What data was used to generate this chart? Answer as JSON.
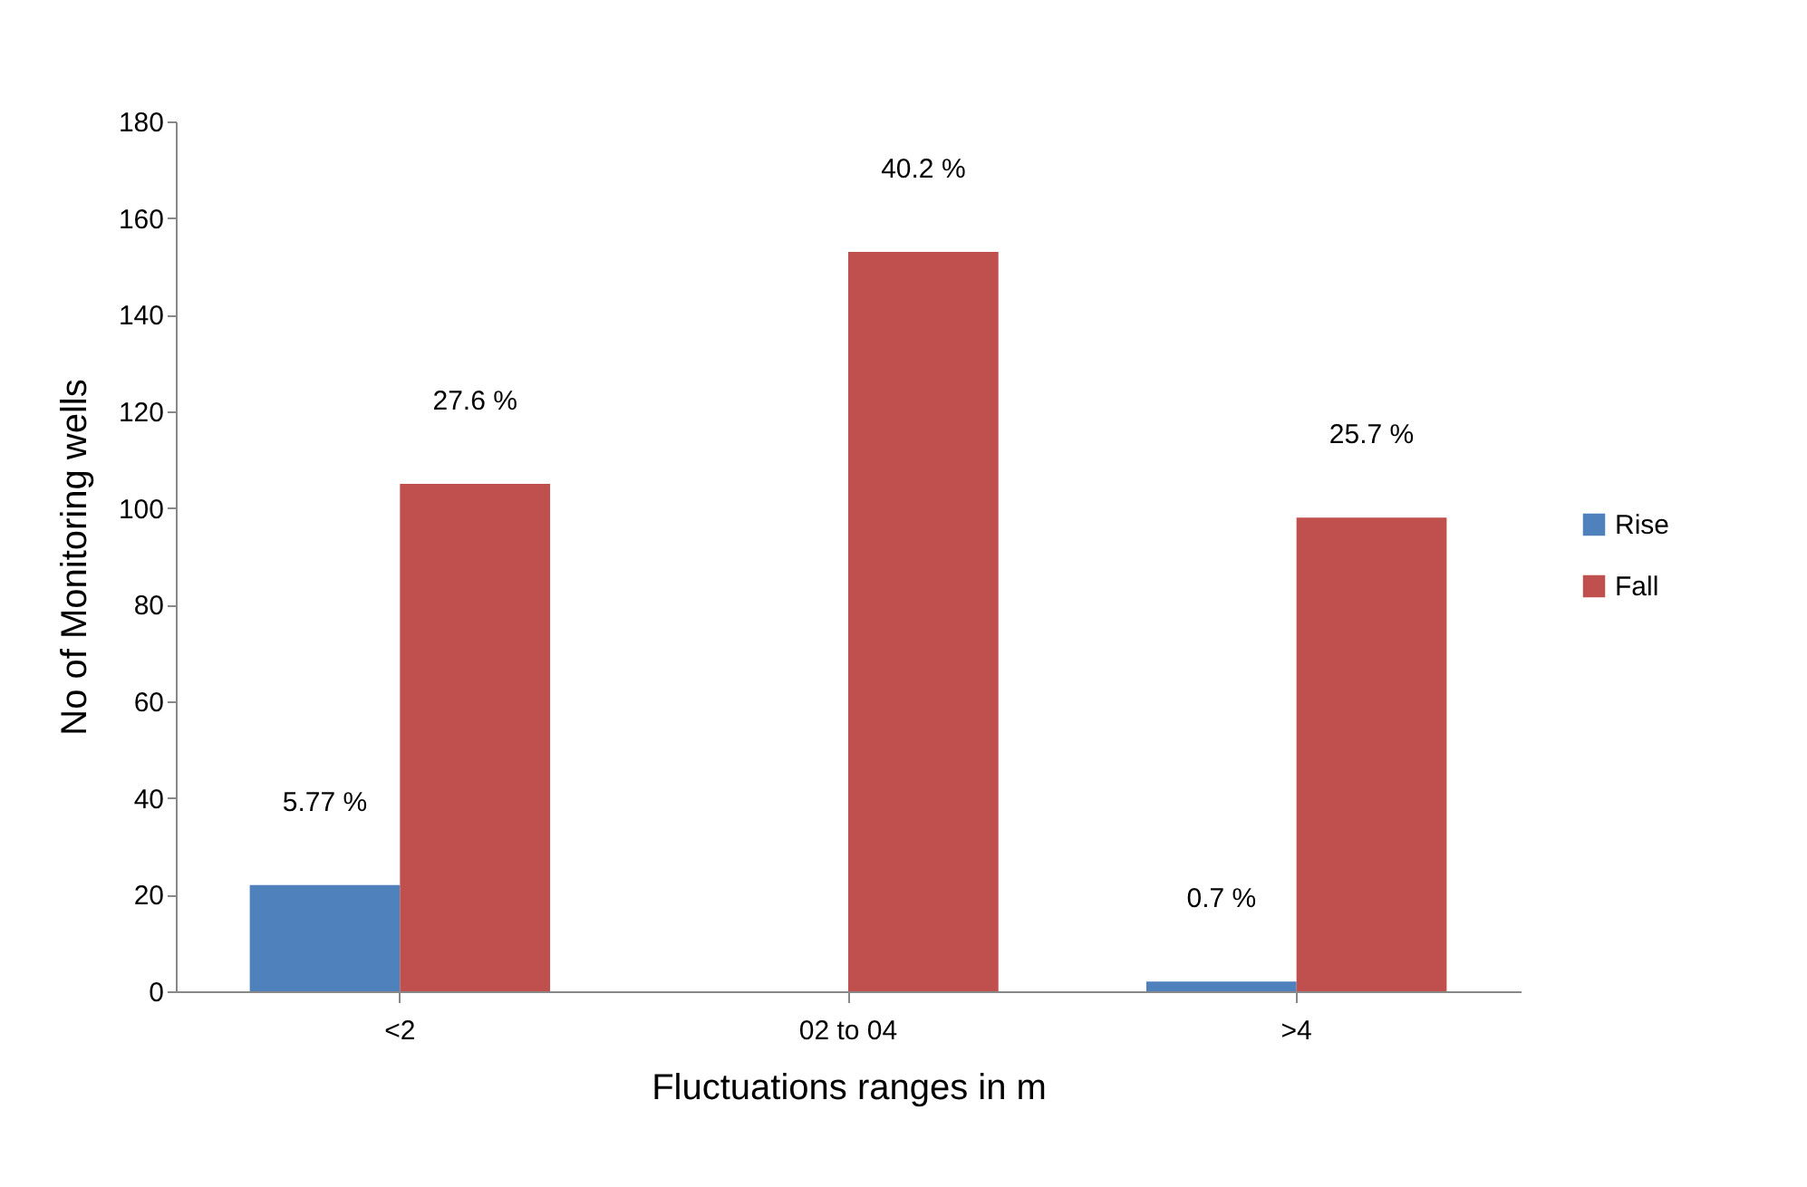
{
  "chart_data": {
    "type": "bar",
    "xlabel": "Fluctuations ranges in m",
    "ylabel": "No of Monitoring wells",
    "categories": [
      "<2",
      "02 to 04",
      ">4"
    ],
    "series": [
      {
        "name": "Rise",
        "color": "#4f81bd",
        "values": [
          22,
          0,
          2
        ]
      },
      {
        "name": "Fall",
        "color": "#c0504d",
        "values": [
          105,
          153,
          98
        ]
      }
    ],
    "annotations": [
      {
        "text": "5.77 %",
        "x": "<2",
        "y": 22
      },
      {
        "text": "27.6 %",
        "x": "<2",
        "y": 105
      },
      {
        "text": "40.2 %",
        "x": "02 to 04",
        "y": 153
      },
      {
        "text": "0.7 %",
        "x": ">4",
        "y": 2
      },
      {
        "text": "25.7 %",
        "x": ">4",
        "y": 98
      }
    ],
    "ylim": [
      0,
      180
    ],
    "yticks": [
      0,
      20,
      40,
      60,
      80,
      100,
      120,
      140,
      160,
      180
    ],
    "grid": false,
    "legend": "right"
  }
}
